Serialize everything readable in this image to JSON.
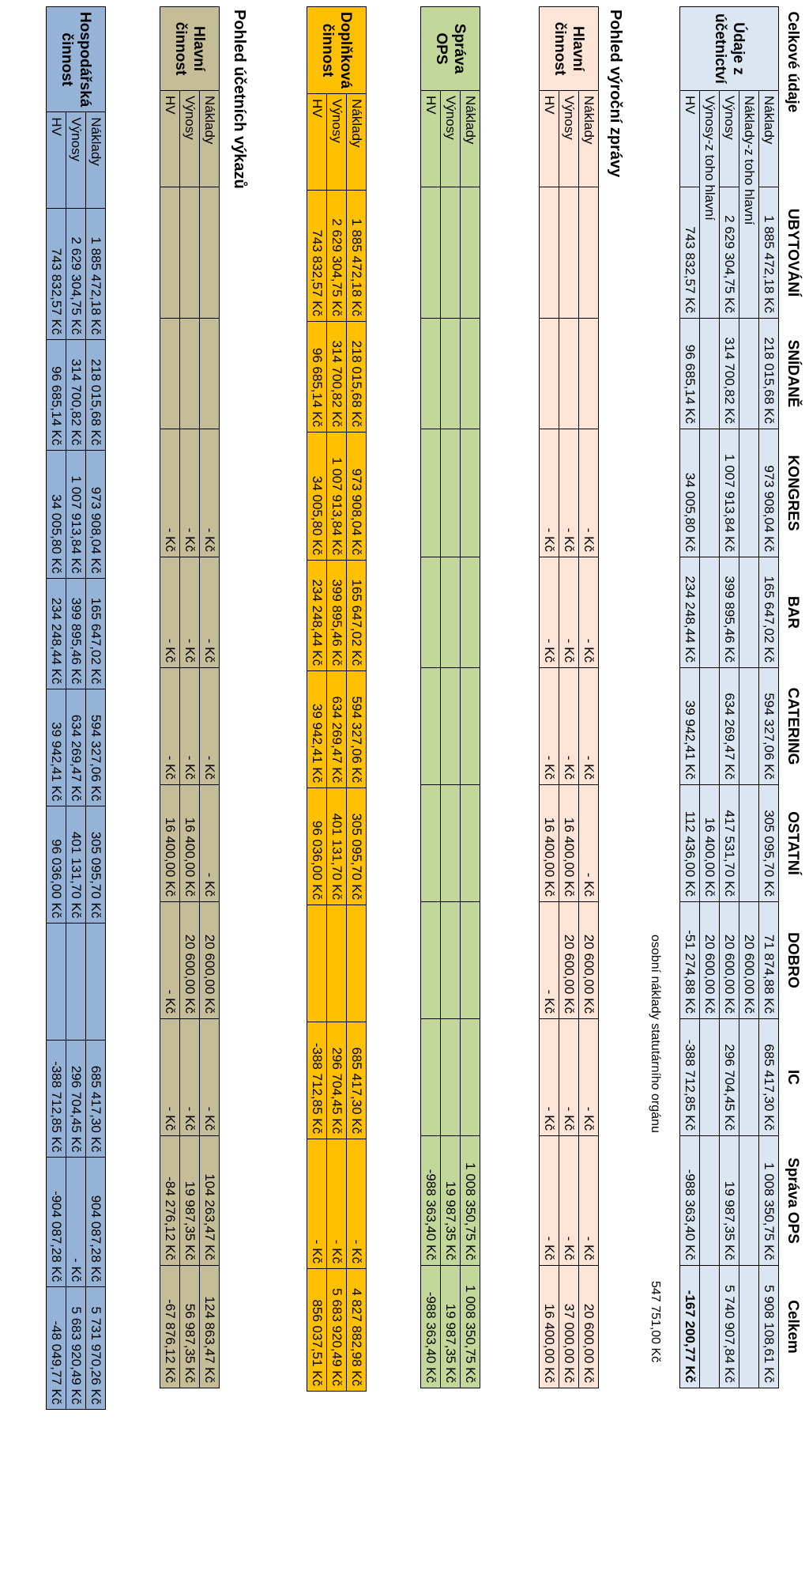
{
  "columns": {
    "label": "Celkové údaje",
    "ubytovani": "UBYTOVÁNÍ",
    "snidane": "SNÍDANĚ",
    "kongres": "KONGRES",
    "bar": "BAR",
    "catering": "CATERING",
    "ostatni": "OSTATNÍ",
    "dobro": "DOBRO",
    "ic": "IC",
    "sprava": "Správa OPS",
    "celkem": "Celkem"
  },
  "ucetnictvi": {
    "group": "Údaje z účetnictví",
    "naklady": {
      "label": "Náklady",
      "values": [
        "1 885 472,18 Kč",
        "218 015,68 Kč",
        "973 908,04 Kč",
        "165 647,02 Kč",
        "594 327,06 Kč",
        "305 095,70 Kč",
        "71 874,88 Kč",
        "685 417,30 Kč",
        "1 008 350,75 Kč",
        "5 908 108,61 Kč"
      ]
    },
    "naklady_hlavni": {
      "label": "Náklady-z toho hlavní",
      "dobro": "20 600,00 Kč"
    },
    "vynosy": {
      "label": "Výnosy",
      "values": [
        "2 629 304,75 Kč",
        "314 700,82 Kč",
        "1 007 913,84 Kč",
        "399 895,46 Kč",
        "634 269,47 Kč",
        "417 531,70 Kč",
        "20 600,00 Kč",
        "296 704,45 Kč",
        "19 987,35 Kč",
        "5 740 907,84 Kč"
      ]
    },
    "vynosy_hlavni": {
      "label": "Výnosy-z toho hlavní",
      "ostatni": "16 400,00 Kč",
      "dobro": "20 600,00 Kč"
    },
    "hv": {
      "label": "HV",
      "values": [
        "743 832,57 Kč",
        "96 685,14 Kč",
        "34 005,80 Kč",
        "234 248,44 Kč",
        "39 942,41 Kč",
        "112 436,00 Kč",
        "-51 274,88 Kč",
        "-388 712,85 Kč",
        "-988 363,40 Kč",
        "-167 200,77 Kč"
      ]
    }
  },
  "note": {
    "label": "osobní náklady statutárního orgánu",
    "value": "547 751,00 Kč"
  },
  "vyrocni_heading": "Pohled výroční zprávy",
  "hlavni": {
    "group": "Hlavní činnost",
    "rows": [
      {
        "label": "Náklady",
        "values": [
          "",
          "",
          "- Kč",
          "- Kč",
          "- Kč",
          "- Kč",
          "20 600,00 Kč",
          "- Kč",
          "- Kč",
          "20 600,00 Kč"
        ]
      },
      {
        "label": "Výnosy",
        "values": [
          "",
          "",
          "- Kč",
          "- Kč",
          "- Kč",
          "16 400,00 Kč",
          "20 600,00 Kč",
          "- Kč",
          "- Kč",
          "37 000,00 Kč"
        ]
      },
      {
        "label": "HV",
        "values": [
          "",
          "",
          "- Kč",
          "- Kč",
          "- Kč",
          "16 400,00 Kč",
          "- Kč",
          "- Kč",
          "- Kč",
          "16 400,00 Kč"
        ]
      }
    ]
  },
  "sprava": {
    "group": "Správa OPS",
    "rows": [
      {
        "label": "Náklady",
        "values": [
          "",
          "",
          "",
          "",
          "",
          "",
          "",
          "",
          "1 008 350,75 Kč",
          "1 008 350,75 Kč"
        ]
      },
      {
        "label": "Výnosy",
        "values": [
          "",
          "",
          "",
          "",
          "",
          "",
          "",
          "",
          "19 987,35 Kč",
          "19 987,35 Kč"
        ]
      },
      {
        "label": "HV",
        "values": [
          "",
          "",
          "",
          "",
          "",
          "",
          "",
          "",
          "-988 363,40 Kč",
          "-988 363,40 Kč"
        ]
      }
    ]
  },
  "doplnkova": {
    "group": "Doplňková činnost",
    "rows": [
      {
        "label": "Náklady",
        "values": [
          "1 885 472,18 Kč",
          "218 015,68 Kč",
          "973 908,04 Kč",
          "165 647,02 Kč",
          "594 327,06 Kč",
          "305 095,70 Kč",
          "",
          "685 417,30 Kč",
          "- Kč",
          "4 827 882,98 Kč"
        ]
      },
      {
        "label": "Výnosy",
        "values": [
          "2 629 304,75 Kč",
          "314 700,82 Kč",
          "1 007 913,84 Kč",
          "399 895,46 Kč",
          "634 269,47 Kč",
          "401 131,70 Kč",
          "",
          "296 704,45 Kč",
          "- Kč",
          "5 683 920,49 Kč"
        ]
      },
      {
        "label": "HV",
        "values": [
          "743 832,57 Kč",
          "96 685,14 Kč",
          "34 005,80 Kč",
          "234 248,44 Kč",
          "39 942,41 Kč",
          "96 036,00 Kč",
          "",
          "-388 712,85 Kč",
          "- Kč",
          "856 037,51 Kč"
        ]
      }
    ]
  },
  "vykazu_heading": "Pohled účetních výkazů",
  "hlavni_vykazy": {
    "group": "Hlavní činnost",
    "rows": [
      {
        "label": "Náklady",
        "values": [
          "",
          "",
          "- Kč",
          "- Kč",
          "- Kč",
          "- Kč",
          "20 600,00 Kč",
          "- Kč",
          "104 263,47 Kč",
          "124 863,47 Kč"
        ]
      },
      {
        "label": "Výnosy",
        "values": [
          "",
          "",
          "- Kč",
          "- Kč",
          "- Kč",
          "16 400,00 Kč",
          "20 600,00 Kč",
          "- Kč",
          "19 987,35 Kč",
          "56 987,35 Kč"
        ]
      },
      {
        "label": "HV",
        "values": [
          "",
          "",
          "- Kč",
          "- Kč",
          "- Kč",
          "16 400,00 Kč",
          "- Kč",
          "- Kč",
          "-84 276,12 Kč",
          "-67 876,12 Kč"
        ]
      }
    ]
  },
  "hospodarska": {
    "group": "Hospodářská činnost",
    "rows": [
      {
        "label": "Náklady",
        "values": [
          "1 885 472,18 Kč",
          "218 015,68 Kč",
          "973 908,04 Kč",
          "165 647,02 Kč",
          "594 327,06 Kč",
          "305 095,70 Kč",
          "",
          "685 417,30 Kč",
          "904 087,28 Kč",
          "5 731 970,26 Kč"
        ]
      },
      {
        "label": "Výnosy",
        "values": [
          "2 629 304,75 Kč",
          "314 700,82 Kč",
          "1 007 913,84 Kč",
          "399 895,46 Kč",
          "634 269,47 Kč",
          "401 131,70 Kč",
          "",
          "296 704,45 Kč",
          "- Kč",
          "5 683 920,49 Kč"
        ]
      },
      {
        "label": "HV",
        "values": [
          "743 832,57 Kč",
          "96 685,14 Kč",
          "34 005,80 Kč",
          "234 248,44 Kč",
          "39 942,41 Kč",
          "96 036,00 Kč",
          "",
          "-388 712,85 Kč",
          "-904 087,28 Kč",
          "-48 049,77 Kč"
        ]
      }
    ]
  },
  "colors": {
    "blue": "#dce6f2",
    "pink": "#fce4d6",
    "green": "#c4d79b",
    "orange": "#ffc000",
    "tan": "#c4bd97",
    "navy": "#95b3d7"
  }
}
